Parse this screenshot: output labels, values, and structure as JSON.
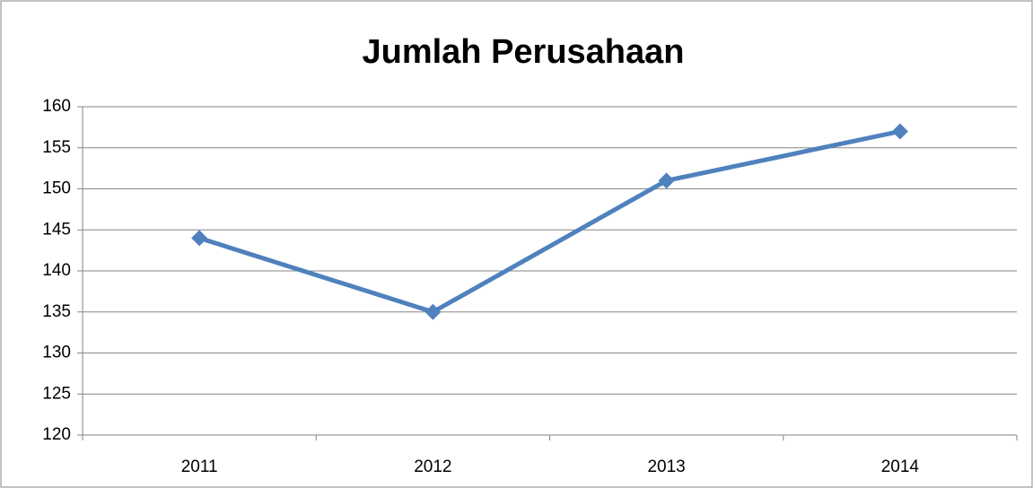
{
  "chart_data": {
    "type": "line",
    "title": "Jumlah Perusahaan",
    "categories": [
      "2011",
      "2012",
      "2013",
      "2014"
    ],
    "series": [
      {
        "name": "Jumlah Perusahaan",
        "color": "#4f81bd",
        "values": [
          144,
          135,
          151,
          157
        ]
      }
    ],
    "ylim": [
      120,
      160
    ],
    "yticks": [
      120,
      125,
      130,
      135,
      140,
      145,
      150,
      155,
      160
    ],
    "grid": true
  }
}
